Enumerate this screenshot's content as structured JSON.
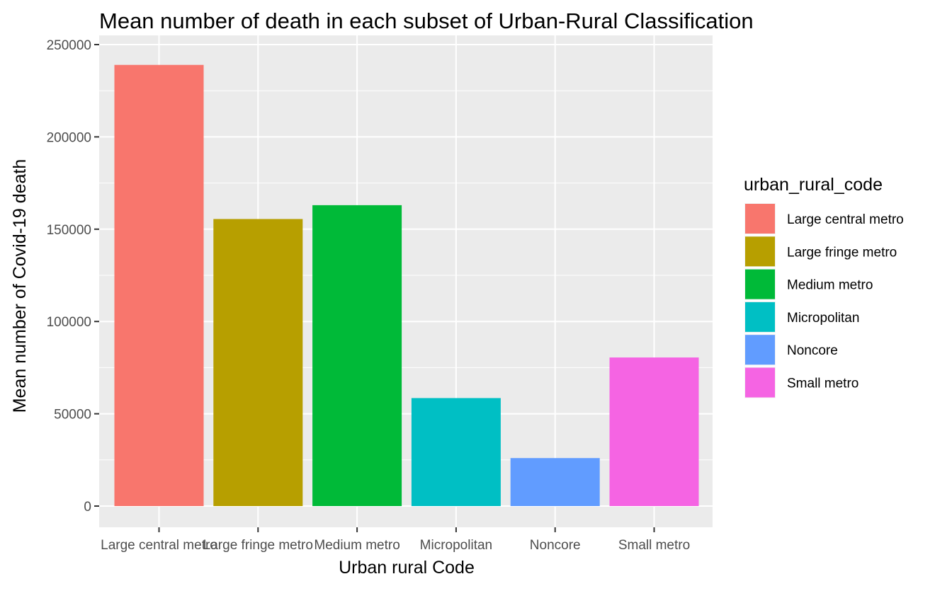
{
  "chart_data": {
    "type": "bar",
    "title": "Mean number of death in each subset of Urban-Rural Classification",
    "xlabel": "Urban rural Code",
    "ylabel": "Mean number of Covid-19 death",
    "categories": [
      "Large central metro",
      "Large fringe metro",
      "Medium metro",
      "Micropolitan",
      "Noncore",
      "Small metro"
    ],
    "values": [
      239000,
      155500,
      163000,
      58500,
      26000,
      80500
    ],
    "ylim": [
      -11000,
      250000
    ],
    "yticks": [
      0,
      50000,
      100000,
      150000,
      200000,
      250000
    ],
    "ytick_labels": [
      "0",
      "50000",
      "100000",
      "150000",
      "200000",
      "250000"
    ],
    "grid": true,
    "colors": [
      "#F8766D",
      "#B79F00",
      "#00BA38",
      "#00BFC4",
      "#619CFF",
      "#F564E3"
    ],
    "legend": {
      "title": "urban_rural_code",
      "position": "right",
      "entries": [
        "Large central metro",
        "Large fringe metro",
        "Medium metro",
        "Micropolitan",
        "Noncore",
        "Small metro"
      ]
    }
  }
}
